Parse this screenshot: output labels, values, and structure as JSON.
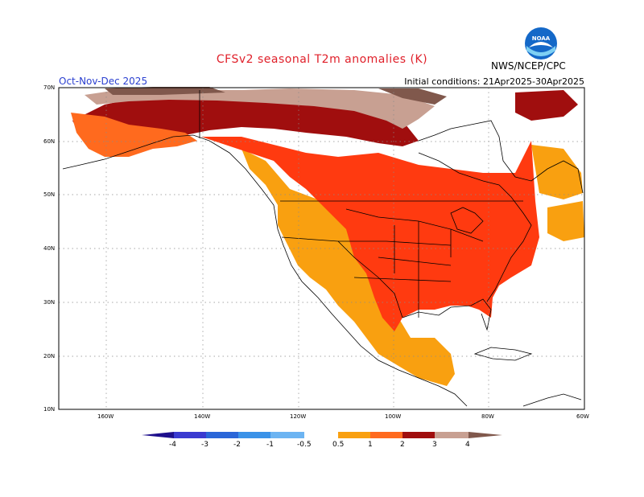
{
  "header": {
    "title": "CFSv2 seasonal T2m anomalies (K)",
    "season": "Oct-Nov-Dec 2025",
    "initial_conditions": "Initial conditions: 21Apr2025-30Apr2025",
    "agency": "NWS/NCEP/CPC",
    "logo_text": "NOAA"
  },
  "map": {
    "projection": "lat-lon",
    "lon_range": [
      "190W",
      "60W"
    ],
    "lat_range": [
      "10N",
      "70N"
    ],
    "lat_labels": [
      "70N",
      "60N",
      "50N",
      "40N",
      "30N",
      "20N",
      "10N"
    ],
    "lon_labels": [
      "160W",
      "140W",
      "120W",
      "100W",
      "80W",
      "60W"
    ],
    "gridlines": "dotted"
  },
  "colorbar": {
    "labels": [
      "-4",
      "-3",
      "-2",
      "-1",
      "-0.5",
      "0.5",
      "1",
      "2",
      "3",
      "4"
    ],
    "colors": [
      "#1e0f8c",
      "#3a3ad0",
      "#2a66d8",
      "#3a92e8",
      "#6cb4f2",
      "#ffffff",
      "#f9a010",
      "#ff6a1e",
      "#ff3a10",
      "#a00e0e",
      "#c8a092",
      "#80584c"
    ]
  }
}
